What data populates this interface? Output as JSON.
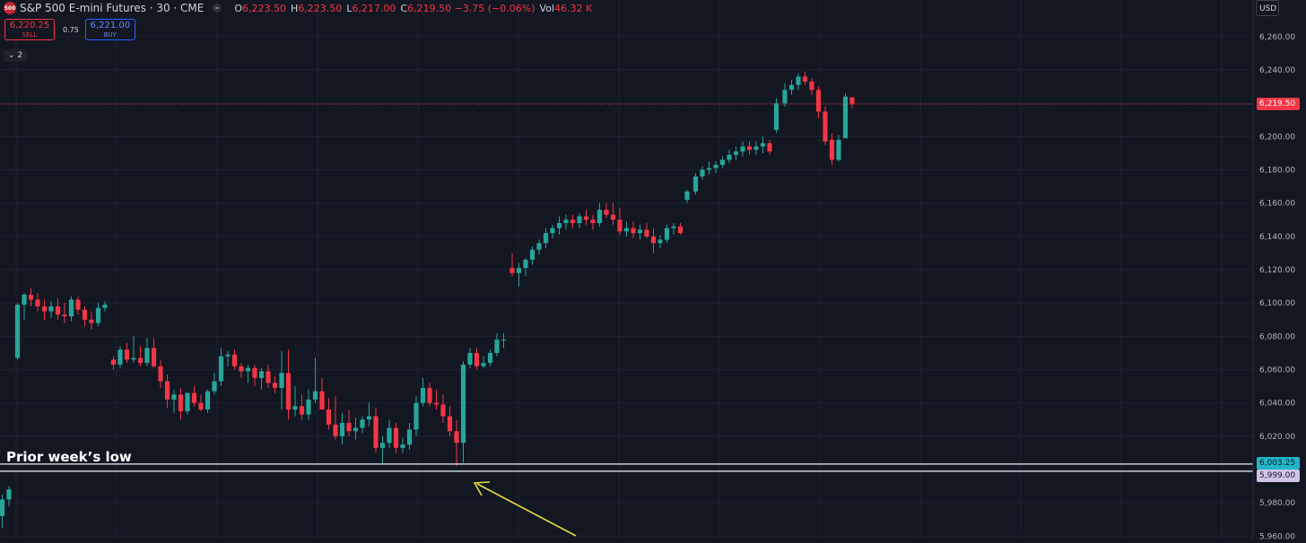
{
  "header": {
    "symbol_badge": "500",
    "title": "S&P 500 E-mini Futures · 30 · CME",
    "ohlc": [
      {
        "k": "O",
        "v": "6,223.50"
      },
      {
        "k": "H",
        "v": "6,223.50"
      },
      {
        "k": "L",
        "v": "6,217.00"
      },
      {
        "k": "C",
        "v": "6,219.50 −3.75 (−0.06%)"
      },
      {
        "k": "Vol",
        "v": "46.32 K"
      }
    ]
  },
  "trade_panel": {
    "sell_price": "6,220.25",
    "sell_label": "SELL",
    "spread": "0.75",
    "buy_price": "6,221.00",
    "buy_label": "BUY"
  },
  "indicators_toggle": "2",
  "currency": "USD",
  "colors": {
    "background": "#131722",
    "bull": "#26a69a",
    "bear": "#f23645",
    "last_price": "#f23645",
    "level_top_tag": "#22b5c7",
    "level_bottom_tag": "#d1c4e9",
    "arrow": "#e5d93e",
    "grid": "#1f2331",
    "axis_text": "#b2b5be"
  },
  "chart_data": {
    "type": "candlestick",
    "timeframe": "30",
    "y_axis_ticks": [
      6260,
      6240,
      6220,
      6200,
      6180,
      6160,
      6140,
      6120,
      6100,
      6080,
      6060,
      6040,
      6020,
      6000,
      5980,
      5960
    ],
    "y_axis_tick_labels": [
      "6,260.00",
      "6,240.00",
      "6,220.00",
      "6,200.00",
      "6,180.00",
      "6,160.00",
      "6,140.00",
      "6,120.00",
      "6,100.00",
      "6,080.00",
      "6,060.00",
      "6,040.00",
      "6,020.00",
      "6,000.00",
      "5,980.00",
      "5,960.00"
    ],
    "ylim": [
      5958,
      6282
    ],
    "last_price": 6219.5,
    "last_price_label": "6,219.50",
    "levels": [
      {
        "price": 6003.25,
        "label": "6,003.25"
      },
      {
        "price": 5999.0,
        "label": "5,999.00"
      }
    ],
    "annotation": "Prior week’s low",
    "candles": [
      {
        "o": 5972,
        "h": 5985,
        "l": 5965,
        "c": 5982
      },
      {
        "o": 5982,
        "h": 5990,
        "l": 5978,
        "c": 5988
      },
      {
        "o": 6067,
        "h": 6100,
        "l": 6066,
        "c": 6099
      },
      {
        "o": 6099,
        "h": 6106,
        "l": 6090,
        "c": 6105
      },
      {
        "o": 6105,
        "h": 6109,
        "l": 6098,
        "c": 6102
      },
      {
        "o": 6102,
        "h": 6106,
        "l": 6095,
        "c": 6098
      },
      {
        "o": 6098,
        "h": 6102,
        "l": 6090,
        "c": 6095
      },
      {
        "o": 6095,
        "h": 6101,
        "l": 6091,
        "c": 6098
      },
      {
        "o": 6098,
        "h": 6103,
        "l": 6090,
        "c": 6093
      },
      {
        "o": 6093,
        "h": 6100,
        "l": 6088,
        "c": 6092
      },
      {
        "o": 6092,
        "h": 6104,
        "l": 6089,
        "c": 6102
      },
      {
        "o": 6102,
        "h": 6104,
        "l": 6093,
        "c": 6096
      },
      {
        "o": 6096,
        "h": 6098,
        "l": 6086,
        "c": 6090
      },
      {
        "o": 6090,
        "h": 6095,
        "l": 6084,
        "c": 6088
      },
      {
        "o": 6088,
        "h": 6100,
        "l": 6086,
        "c": 6097
      },
      {
        "o": 6097,
        "h": 6101,
        "l": 6095,
        "c": 6099
      },
      {
        "o": 6066,
        "h": 6068,
        "l": 6060,
        "c": 6063
      },
      {
        "o": 6063,
        "h": 6074,
        "l": 6061,
        "c": 6072
      },
      {
        "o": 6072,
        "h": 6076,
        "l": 6064,
        "c": 6066
      },
      {
        "o": 6066,
        "h": 6080,
        "l": 6064,
        "c": 6067
      },
      {
        "o": 6067,
        "h": 6074,
        "l": 6062,
        "c": 6064
      },
      {
        "o": 6064,
        "h": 6079,
        "l": 6062,
        "c": 6073
      },
      {
        "o": 6073,
        "h": 6079,
        "l": 6061,
        "c": 6062
      },
      {
        "o": 6062,
        "h": 6066,
        "l": 6049,
        "c": 6053
      },
      {
        "o": 6053,
        "h": 6057,
        "l": 6037,
        "c": 6042
      },
      {
        "o": 6042,
        "h": 6048,
        "l": 6034,
        "c": 6045
      },
      {
        "o": 6045,
        "h": 6049,
        "l": 6030,
        "c": 6035
      },
      {
        "o": 6035,
        "h": 6045,
        "l": 6033,
        "c": 6046
      },
      {
        "o": 6046,
        "h": 6050,
        "l": 6038,
        "c": 6040
      },
      {
        "o": 6040,
        "h": 6045,
        "l": 6035,
        "c": 6036
      },
      {
        "o": 6036,
        "h": 6048,
        "l": 6034,
        "c": 6047
      },
      {
        "o": 6047,
        "h": 6058,
        "l": 6045,
        "c": 6053
      },
      {
        "o": 6053,
        "h": 6073,
        "l": 6050,
        "c": 6068
      },
      {
        "o": 6068,
        "h": 6071,
        "l": 6062,
        "c": 6069
      },
      {
        "o": 6069,
        "h": 6072,
        "l": 6060,
        "c": 6062
      },
      {
        "o": 6062,
        "h": 6064,
        "l": 6055,
        "c": 6059
      },
      {
        "o": 6059,
        "h": 6063,
        "l": 6052,
        "c": 6061
      },
      {
        "o": 6061,
        "h": 6063,
        "l": 6050,
        "c": 6055
      },
      {
        "o": 6055,
        "h": 6061,
        "l": 6048,
        "c": 6059
      },
      {
        "o": 6059,
        "h": 6063,
        "l": 6049,
        "c": 6052
      },
      {
        "o": 6052,
        "h": 6056,
        "l": 6046,
        "c": 6049
      },
      {
        "o": 6049,
        "h": 6071,
        "l": 6036,
        "c": 6058
      },
      {
        "o": 6058,
        "h": 6072,
        "l": 6030,
        "c": 6036
      },
      {
        "o": 6036,
        "h": 6050,
        "l": 6032,
        "c": 6038
      },
      {
        "o": 6038,
        "h": 6045,
        "l": 6030,
        "c": 6033
      },
      {
        "o": 6033,
        "h": 6048,
        "l": 6030,
        "c": 6042
      },
      {
        "o": 6042,
        "h": 6067,
        "l": 6040,
        "c": 6047
      },
      {
        "o": 6047,
        "h": 6055,
        "l": 6038,
        "c": 6036
      },
      {
        "o": 6036,
        "h": 6043,
        "l": 6024,
        "c": 6027
      },
      {
        "o": 6027,
        "h": 6044,
        "l": 6018,
        "c": 6020
      },
      {
        "o": 6020,
        "h": 6034,
        "l": 6015,
        "c": 6028
      },
      {
        "o": 6028,
        "h": 6036,
        "l": 6020,
        "c": 6023
      },
      {
        "o": 6023,
        "h": 6031,
        "l": 6018,
        "c": 6025
      },
      {
        "o": 6025,
        "h": 6032,
        "l": 6022,
        "c": 6030
      },
      {
        "o": 6030,
        "h": 6040,
        "l": 6026,
        "c": 6032
      },
      {
        "o": 6032,
        "h": 6037,
        "l": 6010,
        "c": 6013
      },
      {
        "o": 6013,
        "h": 6020,
        "l": 6003,
        "c": 6016
      },
      {
        "o": 6016,
        "h": 6030,
        "l": 6013,
        "c": 6025
      },
      {
        "o": 6025,
        "h": 6028,
        "l": 6010,
        "c": 6013
      },
      {
        "o": 6013,
        "h": 6019,
        "l": 6010,
        "c": 6015
      },
      {
        "o": 6015,
        "h": 6028,
        "l": 6012,
        "c": 6024
      },
      {
        "o": 6024,
        "h": 6044,
        "l": 6020,
        "c": 6040
      },
      {
        "o": 6040,
        "h": 6055,
        "l": 6038,
        "c": 6049
      },
      {
        "o": 6049,
        "h": 6052,
        "l": 6038,
        "c": 6040
      },
      {
        "o": 6040,
        "h": 6048,
        "l": 6036,
        "c": 6039
      },
      {
        "o": 6039,
        "h": 6045,
        "l": 6028,
        "c": 6032
      },
      {
        "o": 6032,
        "h": 6038,
        "l": 6020,
        "c": 6023
      },
      {
        "o": 6023,
        "h": 6030,
        "l": 6002,
        "c": 6016
      },
      {
        "o": 6016,
        "h": 6065,
        "l": 6004,
        "c": 6063
      },
      {
        "o": 6063,
        "h": 6073,
        "l": 6061,
        "c": 6070
      },
      {
        "o": 6070,
        "h": 6073,
        "l": 6060,
        "c": 6062
      },
      {
        "o": 6062,
        "h": 6068,
        "l": 6061,
        "c": 6064
      },
      {
        "o": 6064,
        "h": 6072,
        "l": 6062,
        "c": 6070
      },
      {
        "o": 6070,
        "h": 6082,
        "l": 6068,
        "c": 6078
      },
      {
        "o": 6078,
        "h": 6082,
        "l": 6073,
        "c": 6078
      },
      {
        "o": 6121,
        "h": 6130,
        "l": 6116,
        "c": 6118
      },
      {
        "o": 6118,
        "h": 6124,
        "l": 6110,
        "c": 6121
      },
      {
        "o": 6121,
        "h": 6127,
        "l": 6116,
        "c": 6126
      },
      {
        "o": 6126,
        "h": 6134,
        "l": 6123,
        "c": 6132
      },
      {
        "o": 6132,
        "h": 6138,
        "l": 6129,
        "c": 6136
      },
      {
        "o": 6136,
        "h": 6145,
        "l": 6133,
        "c": 6142
      },
      {
        "o": 6142,
        "h": 6147,
        "l": 6139,
        "c": 6145
      },
      {
        "o": 6145,
        "h": 6152,
        "l": 6141,
        "c": 6148
      },
      {
        "o": 6148,
        "h": 6153,
        "l": 6144,
        "c": 6150
      },
      {
        "o": 6150,
        "h": 6153,
        "l": 6145,
        "c": 6148
      },
      {
        "o": 6148,
        "h": 6154,
        "l": 6145,
        "c": 6152
      },
      {
        "o": 6152,
        "h": 6156,
        "l": 6147,
        "c": 6150
      },
      {
        "o": 6150,
        "h": 6153,
        "l": 6144,
        "c": 6148
      },
      {
        "o": 6148,
        "h": 6160,
        "l": 6146,
        "c": 6156
      },
      {
        "o": 6156,
        "h": 6160,
        "l": 6151,
        "c": 6153
      },
      {
        "o": 6153,
        "h": 6160,
        "l": 6147,
        "c": 6150
      },
      {
        "o": 6150,
        "h": 6157,
        "l": 6141,
        "c": 6143
      },
      {
        "o": 6143,
        "h": 6149,
        "l": 6140,
        "c": 6145
      },
      {
        "o": 6145,
        "h": 6149,
        "l": 6139,
        "c": 6142
      },
      {
        "o": 6142,
        "h": 6147,
        "l": 6138,
        "c": 6144
      },
      {
        "o": 6144,
        "h": 6148,
        "l": 6139,
        "c": 6140
      },
      {
        "o": 6140,
        "h": 6145,
        "l": 6130,
        "c": 6136
      },
      {
        "o": 6136,
        "h": 6141,
        "l": 6133,
        "c": 6138
      },
      {
        "o": 6138,
        "h": 6147,
        "l": 6136,
        "c": 6145
      },
      {
        "o": 6145,
        "h": 6148,
        "l": 6141,
        "c": 6146
      },
      {
        "o": 6146,
        "h": 6148,
        "l": 6141,
        "c": 6142
      },
      {
        "o": 6162,
        "h": 6168,
        "l": 6160,
        "c": 6167
      },
      {
        "o": 6167,
        "h": 6178,
        "l": 6165,
        "c": 6176
      },
      {
        "o": 6176,
        "h": 6182,
        "l": 6174,
        "c": 6180
      },
      {
        "o": 6180,
        "h": 6185,
        "l": 6177,
        "c": 6181
      },
      {
        "o": 6181,
        "h": 6185,
        "l": 6178,
        "c": 6183
      },
      {
        "o": 6183,
        "h": 6188,
        "l": 6181,
        "c": 6186
      },
      {
        "o": 6186,
        "h": 6192,
        "l": 6184,
        "c": 6189
      },
      {
        "o": 6189,
        "h": 6194,
        "l": 6186,
        "c": 6191
      },
      {
        "o": 6191,
        "h": 6197,
        "l": 6188,
        "c": 6194
      },
      {
        "o": 6194,
        "h": 6197,
        "l": 6189,
        "c": 6192
      },
      {
        "o": 6192,
        "h": 6197,
        "l": 6189,
        "c": 6194
      },
      {
        "o": 6194,
        "h": 6200,
        "l": 6190,
        "c": 6196
      },
      {
        "o": 6196,
        "h": 6198,
        "l": 6189,
        "c": 6191
      },
      {
        "o": 6204,
        "h": 6223,
        "l": 6202,
        "c": 6220
      },
      {
        "o": 6220,
        "h": 6232,
        "l": 6218,
        "c": 6228
      },
      {
        "o": 6228,
        "h": 6234,
        "l": 6225,
        "c": 6231
      },
      {
        "o": 6231,
        "h": 6238,
        "l": 6228,
        "c": 6236
      },
      {
        "o": 6236,
        "h": 6239,
        "l": 6231,
        "c": 6233
      },
      {
        "o": 6233,
        "h": 6235,
        "l": 6225,
        "c": 6228
      },
      {
        "o": 6228,
        "h": 6230,
        "l": 6211,
        "c": 6215
      },
      {
        "o": 6215,
        "h": 6218,
        "l": 6195,
        "c": 6197
      },
      {
        "o": 6198,
        "h": 6202,
        "l": 6183,
        "c": 6186
      },
      {
        "o": 6186,
        "h": 6201,
        "l": 6185,
        "c": 6198
      },
      {
        "o": 6199,
        "h": 6226,
        "l": 6199,
        "c": 6224
      },
      {
        "o": 6223.5,
        "h": 6223.5,
        "l": 6217,
        "c": 6219.5
      }
    ]
  }
}
